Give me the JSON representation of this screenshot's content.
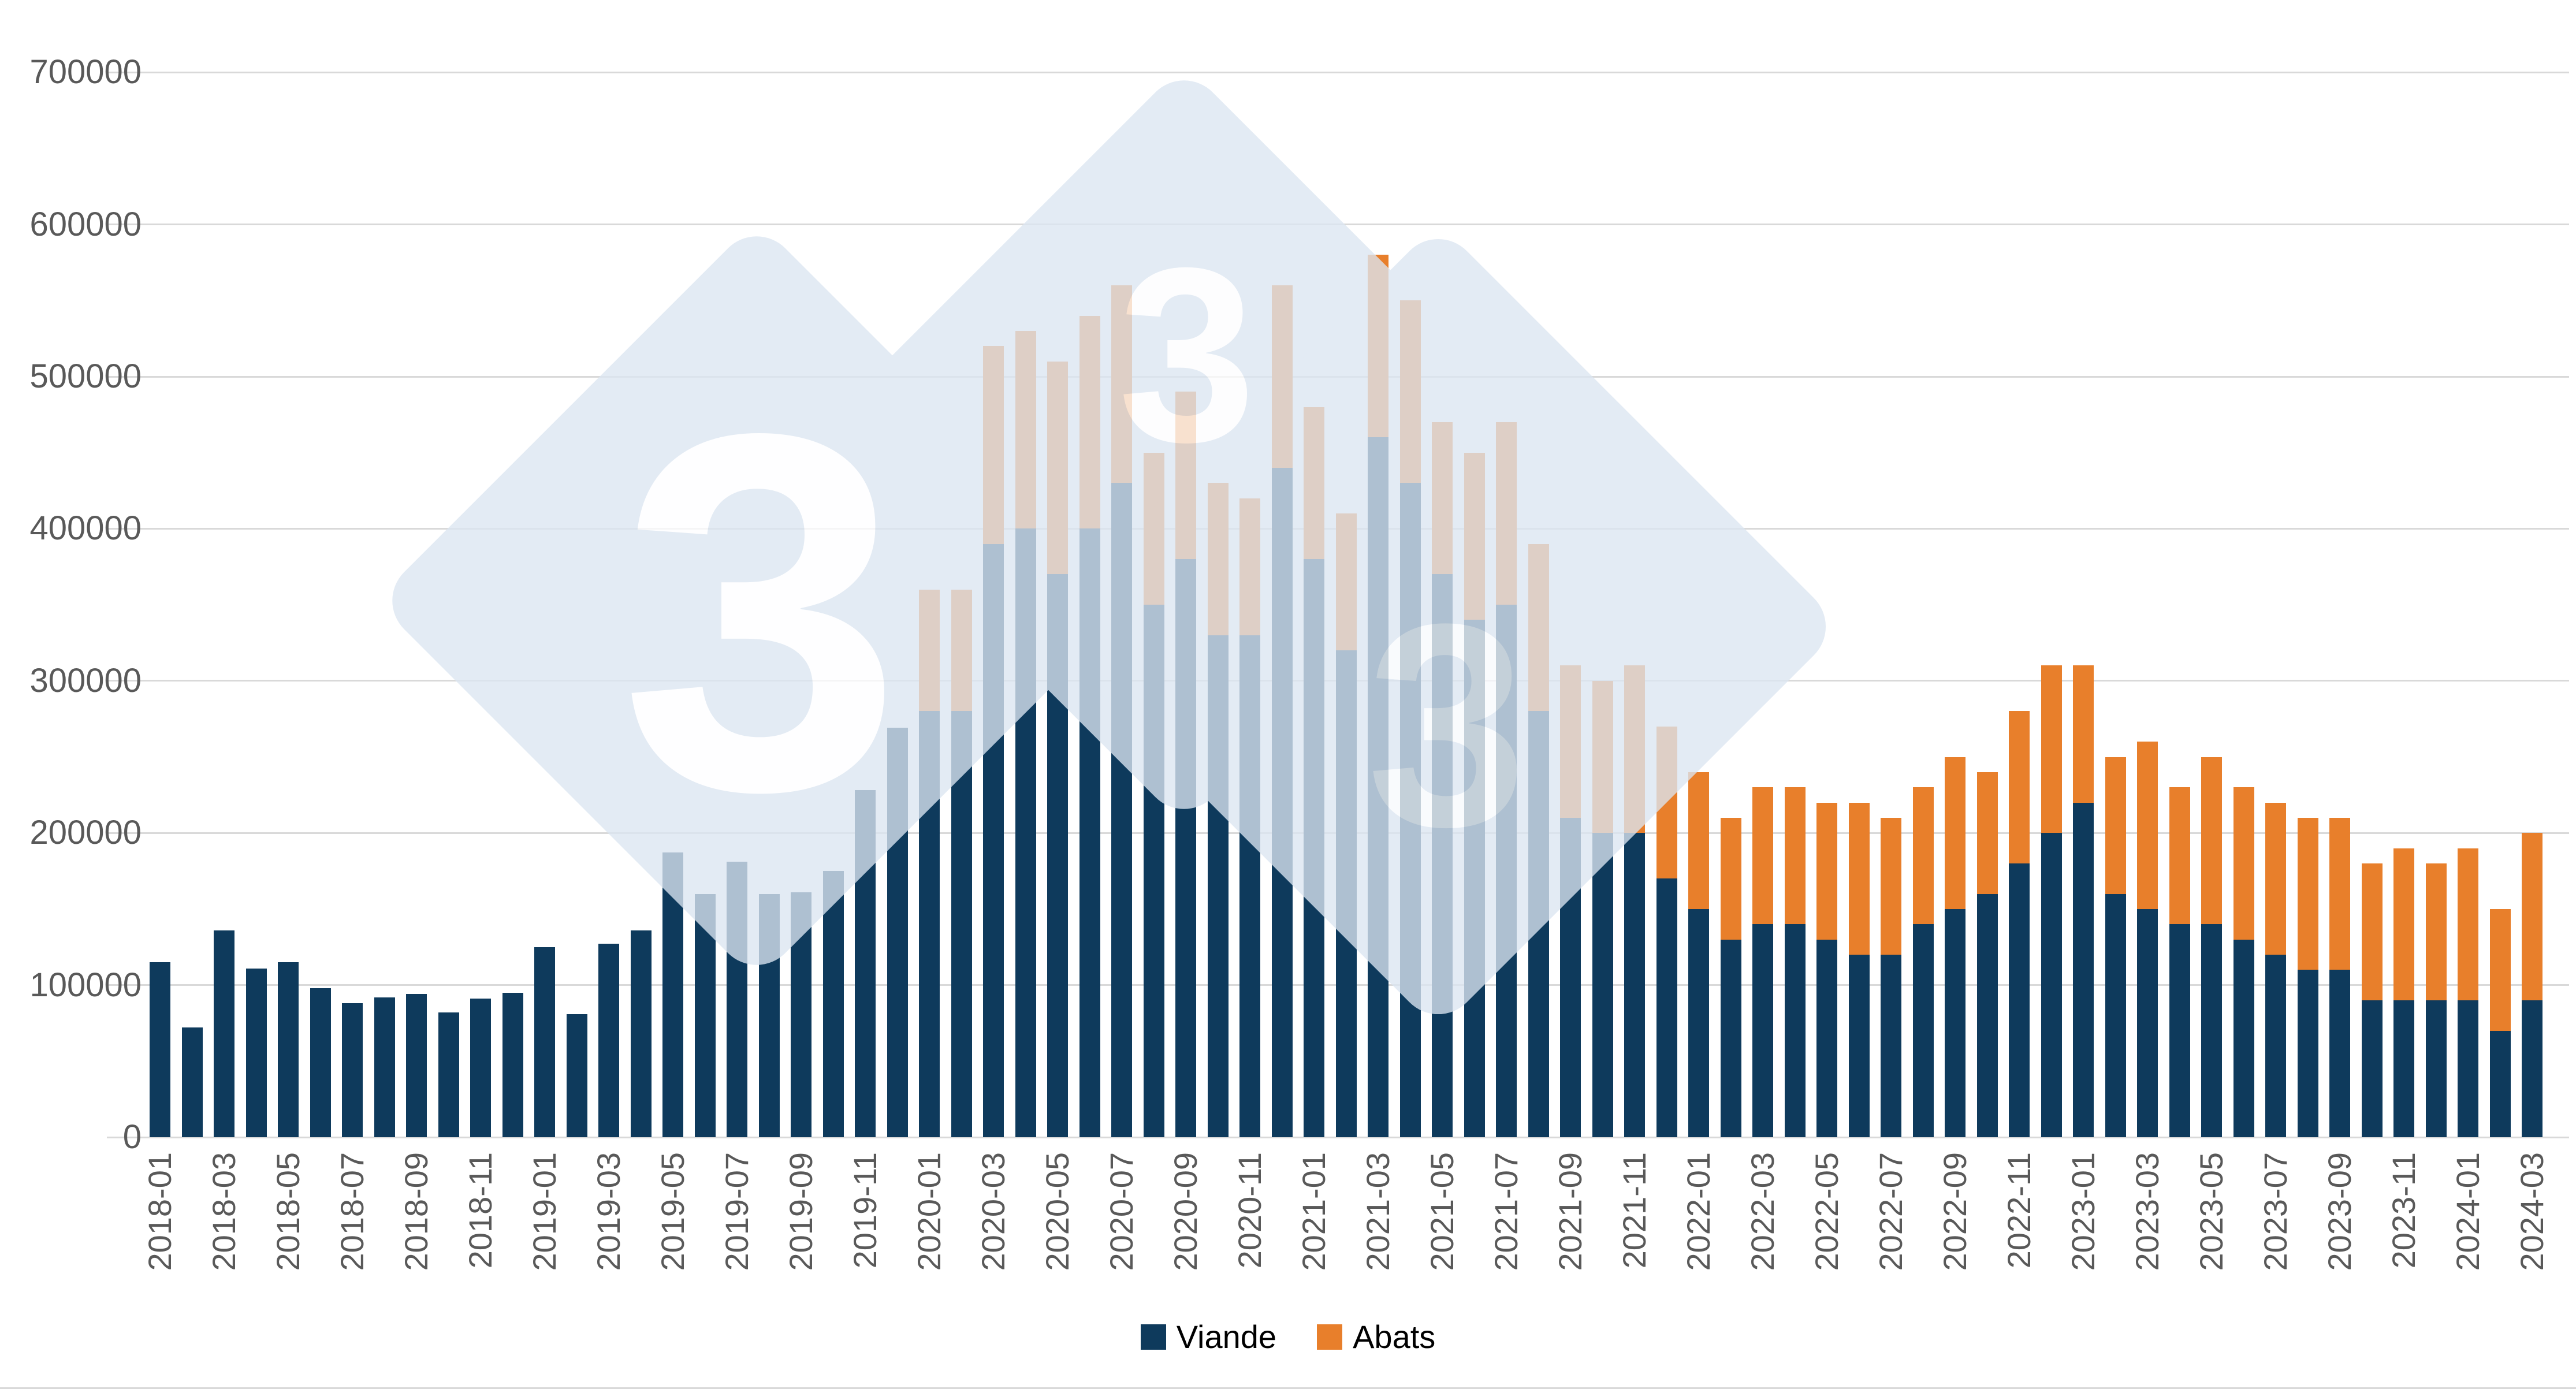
{
  "chart_data": {
    "type": "bar",
    "stacked": true,
    "title": "",
    "xlabel": "",
    "ylabel": "",
    "ylim": [
      0,
      700000
    ],
    "y_ticks": [
      0,
      100000,
      200000,
      300000,
      400000,
      500000,
      600000,
      700000
    ],
    "grid": true,
    "legend_position": "bottom",
    "x_tick_every": 2,
    "categories": [
      "2018-01",
      "2018-02",
      "2018-03",
      "2018-04",
      "2018-05",
      "2018-06",
      "2018-07",
      "2018-08",
      "2018-09",
      "2018-10",
      "2018-11",
      "2018-12",
      "2019-01",
      "2019-02",
      "2019-03",
      "2019-04",
      "2019-05",
      "2019-06",
      "2019-07",
      "2019-08",
      "2019-09",
      "2019-10",
      "2019-11",
      "2019-12",
      "2020-01",
      "2020-02",
      "2020-03",
      "2020-04",
      "2020-05",
      "2020-06",
      "2020-07",
      "2020-08",
      "2020-09",
      "2020-10",
      "2020-11",
      "2020-12",
      "2021-01",
      "2021-02",
      "2021-03",
      "2021-04",
      "2021-05",
      "2021-06",
      "2021-07",
      "2021-08",
      "2021-09",
      "2021-10",
      "2021-11",
      "2021-12",
      "2022-01",
      "2022-02",
      "2022-03",
      "2022-04",
      "2022-05",
      "2022-06",
      "2022-07",
      "2022-08",
      "2022-09",
      "2022-10",
      "2022-11",
      "2022-12",
      "2023-01",
      "2023-02",
      "2023-03",
      "2023-04",
      "2023-05",
      "2023-06",
      "2023-07",
      "2023-08",
      "2023-09",
      "2023-10",
      "2023-11",
      "2023-12",
      "2024-01",
      "2024-02",
      "2024-03"
    ],
    "series": [
      {
        "name": "Viande",
        "color": "#0e3a5c",
        "values": [
          115000,
          72000,
          136000,
          111000,
          115000,
          98000,
          88000,
          92000,
          94000,
          82000,
          91000,
          95000,
          125000,
          81000,
          127000,
          136000,
          187000,
          160000,
          181000,
          160000,
          161000,
          175000,
          228000,
          269000,
          280000,
          280000,
          390000,
          400000,
          370000,
          400000,
          430000,
          350000,
          380000,
          330000,
          330000,
          440000,
          380000,
          320000,
          460000,
          430000,
          370000,
          340000,
          350000,
          280000,
          210000,
          200000,
          200000,
          170000,
          150000,
          130000,
          140000,
          140000,
          130000,
          120000,
          120000,
          140000,
          150000,
          160000,
          180000,
          200000,
          220000,
          160000,
          150000,
          140000,
          140000,
          130000,
          120000,
          110000,
          110000,
          90000,
          90000,
          90000,
          90000,
          70000,
          90000
        ]
      },
      {
        "name": "Abats",
        "color": "#e87f2b",
        "values": [
          0,
          0,
          0,
          0,
          0,
          0,
          0,
          0,
          0,
          0,
          0,
          0,
          0,
          0,
          0,
          0,
          0,
          0,
          0,
          0,
          0,
          0,
          0,
          0,
          80000,
          80000,
          130000,
          130000,
          140000,
          140000,
          130000,
          100000,
          110000,
          100000,
          90000,
          120000,
          100000,
          90000,
          120000,
          120000,
          100000,
          110000,
          120000,
          110000,
          100000,
          100000,
          110000,
          100000,
          90000,
          80000,
          90000,
          90000,
          90000,
          100000,
          90000,
          90000,
          100000,
          80000,
          100000,
          110000,
          90000,
          90000,
          110000,
          90000,
          110000,
          100000,
          100000,
          100000,
          100000,
          90000,
          100000,
          90000,
          100000,
          80000,
          110000
        ]
      }
    ]
  },
  "legend": {
    "viande_label": "Viande",
    "abats_label": "Abats"
  },
  "watermark": {
    "glyph": "3",
    "diamond_color": "#dce6f2",
    "glyph_color": "#ffffff"
  },
  "colors": {
    "grid": "#d9d9d9",
    "axis_text": "#595959",
    "background": "#ffffff"
  }
}
